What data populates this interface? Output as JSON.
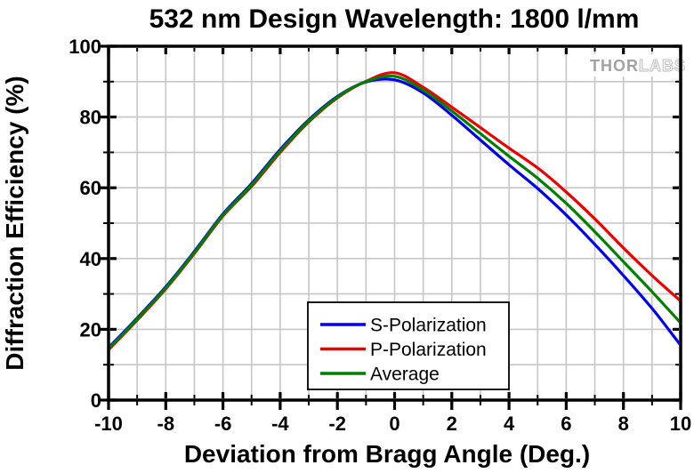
{
  "watermark": {
    "brand_left": "THOR",
    "brand_right": "LABS"
  },
  "chart_data": {
    "type": "line",
    "title": "532 nm Design Wavelength: 1800 l/mm",
    "xlabel": "Deviation from Bragg Angle (Deg.)",
    "ylabel": "Diffraction Efficiency (%)",
    "xlim": [
      -10,
      10
    ],
    "ylim": [
      0,
      100
    ],
    "x_major_ticks": [
      -10,
      -8,
      -6,
      -4,
      -2,
      0,
      2,
      4,
      6,
      8,
      10
    ],
    "x_tick_labels": [
      "-10",
      "-8",
      "-6",
      "-4",
      "-2",
      "0",
      "2",
      "4",
      "6",
      "8",
      "10"
    ],
    "x_minor_step": 1,
    "y_major_ticks": [
      0,
      20,
      40,
      60,
      80,
      100
    ],
    "y_tick_labels": [
      "0",
      "20",
      "40",
      "60",
      "80",
      "100"
    ],
    "y_minor_step": 10,
    "grid": true,
    "grid_color": "#c6c6c6",
    "legend_position": "lower-center",
    "x": [
      -10,
      -9,
      -8,
      -7,
      -6,
      -5,
      -4,
      -3,
      -2,
      -1,
      0,
      1,
      2,
      3,
      4,
      5,
      6,
      7,
      8,
      9,
      10
    ],
    "series": [
      {
        "name": "S-Polarization",
        "color": "#0000ee",
        "values": [
          14.8,
          23.2,
          32.0,
          42.0,
          52.6,
          61.2,
          70.8,
          79.2,
          85.8,
          89.9,
          90.5,
          86.8,
          80.5,
          73.5,
          66.5,
          59.8,
          52.3,
          44.0,
          35.2,
          25.9,
          15.5
        ]
      },
      {
        "name": "P-Polarization",
        "color": "#ee0000",
        "values": [
          14.2,
          22.6,
          31.4,
          41.4,
          52.0,
          60.4,
          70.0,
          78.6,
          85.4,
          90.1,
          92.5,
          88.4,
          82.8,
          77.0,
          71.2,
          65.6,
          58.8,
          51.2,
          43.0,
          35.2,
          28.0
        ]
      },
      {
        "name": "Average",
        "color": "#008000",
        "values": [
          14.5,
          22.9,
          31.7,
          41.7,
          52.3,
          60.8,
          70.4,
          78.9,
          85.6,
          90.0,
          91.5,
          87.6,
          81.7,
          75.3,
          68.9,
          62.7,
          55.6,
          47.6,
          39.1,
          30.6,
          21.8
        ]
      }
    ]
  }
}
